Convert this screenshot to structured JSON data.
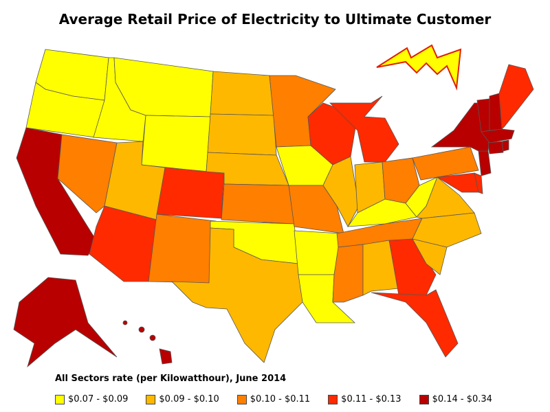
{
  "title": "Average Retail Price of Electricity to Ultimate Customer",
  "legend": {
    "title": "All Sectors rate (per Kilowatthour), June 2014",
    "items": [
      {
        "label": "$0.07 - $0.09",
        "color": "#ffff00"
      },
      {
        "label": "$0.09 - $0.10",
        "color": "#ffb800"
      },
      {
        "label": "$0.10 - $0.11",
        "color": "#ff7f00"
      },
      {
        "label": "$0.11 - $0.13",
        "color": "#ff2a00"
      },
      {
        "label": "$0.14 - $0.34",
        "color": "#b80000"
      }
    ]
  },
  "states": {
    "WA": 0,
    "OR": 0,
    "ID": 0,
    "MT": 0,
    "WY": 0,
    "ND": 1,
    "SD": 1,
    "NE": 1,
    "UT": 1,
    "TX": 1,
    "OK": 0,
    "AR": 0,
    "LA": 0,
    "IA": 0,
    "IL": 1,
    "IN": 1,
    "KY": 0,
    "WV": 0,
    "VA": 1,
    "NC": 1,
    "SC": 1,
    "AL": 1,
    "MN": 2,
    "KS": 2,
    "MO": 2,
    "NV": 2,
    "NM": 2,
    "OH": 2,
    "PA": 2,
    "TN": 2,
    "MS": 2,
    "WI": 3,
    "MI": 3,
    "CO": 3,
    "AZ": 3,
    "GA": 3,
    "FL": 3,
    "MD": 3,
    "DE": 3,
    "ME": 3,
    "CA": 4,
    "AK": 4,
    "HI": 4,
    "NY": 4,
    "VT": 4,
    "NH": 4,
    "MA": 4,
    "CT": 4,
    "RI": 4,
    "NJ": 4
  }
}
